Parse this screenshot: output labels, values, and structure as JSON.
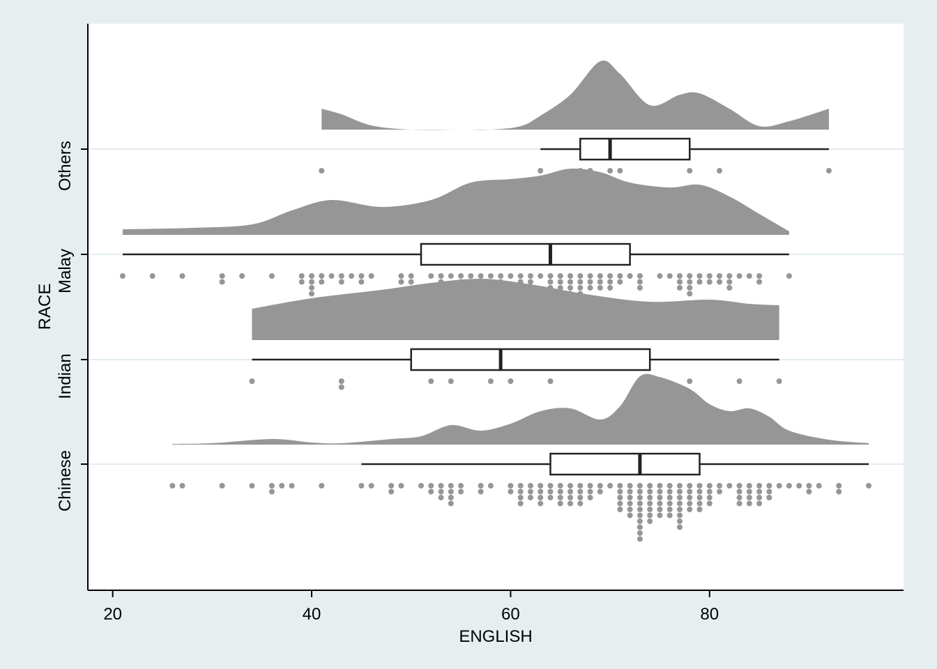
{
  "chart_data": {
    "type": "raincloud",
    "xlabel": "ENGLISH",
    "ylabel": "RACE",
    "xlim": [
      17.5,
      99.5
    ],
    "xticks": [
      20,
      40,
      60,
      80
    ],
    "grid": "horizontal",
    "colors": {
      "background": "#e6eef0",
      "plot": "#ffffff",
      "density": "#969696",
      "dots": "#969696",
      "box": "#222222",
      "grid": "#e3ecee"
    },
    "groups": [
      {
        "name": "Chinese",
        "box": {
          "lower_whisker": 45,
          "q1": 64,
          "median": 73,
          "q3": 79,
          "upper_whisker": 96
        },
        "density": [
          [
            26,
            0.01
          ],
          [
            30,
            0.02
          ],
          [
            36,
            0.08
          ],
          [
            40,
            0.03
          ],
          [
            43,
            0.02
          ],
          [
            48,
            0.08
          ],
          [
            51,
            0.12
          ],
          [
            54,
            0.28
          ],
          [
            57,
            0.2
          ],
          [
            60,
            0.3
          ],
          [
            63,
            0.48
          ],
          [
            66,
            0.52
          ],
          [
            69,
            0.36
          ],
          [
            71,
            0.55
          ],
          [
            73,
            0.98
          ],
          [
            75,
            0.97
          ],
          [
            78,
            0.8
          ],
          [
            80,
            0.58
          ],
          [
            82,
            0.48
          ],
          [
            84,
            0.52
          ],
          [
            86,
            0.4
          ],
          [
            88,
            0.2
          ],
          [
            92,
            0.07
          ],
          [
            96,
            0.02
          ]
        ],
        "dots": [
          [
            26,
            1
          ],
          [
            27,
            1
          ],
          [
            31,
            1
          ],
          [
            34,
            1
          ],
          [
            36,
            2
          ],
          [
            37,
            1
          ],
          [
            38,
            1
          ],
          [
            41,
            1
          ],
          [
            45,
            1
          ],
          [
            46,
            1
          ],
          [
            48,
            2
          ],
          [
            49,
            1
          ],
          [
            51,
            1
          ],
          [
            52,
            2
          ],
          [
            53,
            3
          ],
          [
            54,
            4
          ],
          [
            55,
            2
          ],
          [
            57,
            2
          ],
          [
            58,
            1
          ],
          [
            60,
            2
          ],
          [
            61,
            4
          ],
          [
            62,
            3
          ],
          [
            63,
            4
          ],
          [
            64,
            3
          ],
          [
            65,
            4
          ],
          [
            66,
            4
          ],
          [
            67,
            4
          ],
          [
            68,
            3
          ],
          [
            69,
            2
          ],
          [
            70,
            1
          ],
          [
            71,
            5
          ],
          [
            72,
            6
          ],
          [
            73,
            10
          ],
          [
            74,
            7
          ],
          [
            75,
            6
          ],
          [
            76,
            6
          ],
          [
            77,
            8
          ],
          [
            78,
            5
          ],
          [
            79,
            5
          ],
          [
            80,
            4
          ],
          [
            81,
            2
          ],
          [
            82,
            1
          ],
          [
            83,
            4
          ],
          [
            84,
            4
          ],
          [
            85,
            4
          ],
          [
            86,
            3
          ],
          [
            87,
            1
          ],
          [
            88,
            1
          ],
          [
            89,
            1
          ],
          [
            90,
            2
          ],
          [
            91,
            1
          ],
          [
            93,
            2
          ],
          [
            96,
            1
          ]
        ]
      },
      {
        "name": "Indian",
        "box": {
          "lower_whisker": 34,
          "q1": 50,
          "median": 59,
          "q3": 74,
          "upper_whisker": 87
        },
        "density": [
          [
            34,
            0.45
          ],
          [
            40,
            0.6
          ],
          [
            47,
            0.72
          ],
          [
            52,
            0.82
          ],
          [
            57,
            0.88
          ],
          [
            62,
            0.8
          ],
          [
            68,
            0.65
          ],
          [
            74,
            0.55
          ],
          [
            80,
            0.58
          ],
          [
            84,
            0.52
          ],
          [
            87,
            0.5
          ]
        ],
        "dots": [
          [
            34,
            1
          ],
          [
            43,
            2
          ],
          [
            52,
            1
          ],
          [
            54,
            1
          ],
          [
            58,
            1
          ],
          [
            60,
            1
          ],
          [
            64,
            1
          ],
          [
            78,
            1
          ],
          [
            83,
            1
          ],
          [
            87,
            1
          ]
        ]
      },
      {
        "name": "Malay",
        "box": {
          "lower_whisker": 21,
          "q1": 51,
          "median": 64,
          "q3": 72,
          "upper_whisker": 88
        },
        "density": [
          [
            21,
            0.08
          ],
          [
            28,
            0.1
          ],
          [
            34,
            0.15
          ],
          [
            38,
            0.35
          ],
          [
            42,
            0.5
          ],
          [
            47,
            0.4
          ],
          [
            52,
            0.5
          ],
          [
            56,
            0.75
          ],
          [
            60,
            0.8
          ],
          [
            63,
            0.85
          ],
          [
            66,
            0.95
          ],
          [
            69,
            0.9
          ],
          [
            72,
            0.75
          ],
          [
            76,
            0.68
          ],
          [
            79,
            0.72
          ],
          [
            82,
            0.55
          ],
          [
            85,
            0.3
          ],
          [
            88,
            0.05
          ]
        ],
        "dots": [
          [
            21,
            1
          ],
          [
            24,
            1
          ],
          [
            27,
            1
          ],
          [
            31,
            2
          ],
          [
            33,
            1
          ],
          [
            36,
            1
          ],
          [
            39,
            2
          ],
          [
            40,
            4
          ],
          [
            41,
            2
          ],
          [
            42,
            1
          ],
          [
            43,
            2
          ],
          [
            44,
            1
          ],
          [
            45,
            2
          ],
          [
            46,
            1
          ],
          [
            49,
            2
          ],
          [
            50,
            2
          ],
          [
            52,
            1
          ],
          [
            53,
            2
          ],
          [
            54,
            1
          ],
          [
            55,
            2
          ],
          [
            56,
            4
          ],
          [
            57,
            4
          ],
          [
            58,
            3
          ],
          [
            59,
            2
          ],
          [
            60,
            1
          ],
          [
            61,
            2
          ],
          [
            62,
            2
          ],
          [
            63,
            1
          ],
          [
            64,
            4
          ],
          [
            65,
            4
          ],
          [
            66,
            5
          ],
          [
            67,
            4
          ],
          [
            68,
            3
          ],
          [
            69,
            3
          ],
          [
            70,
            3
          ],
          [
            71,
            2
          ],
          [
            72,
            1
          ],
          [
            73,
            3
          ],
          [
            75,
            1
          ],
          [
            76,
            1
          ],
          [
            77,
            3
          ],
          [
            78,
            4
          ],
          [
            79,
            2
          ],
          [
            80,
            2
          ],
          [
            81,
            2
          ],
          [
            82,
            3
          ],
          [
            83,
            1
          ],
          [
            84,
            1
          ],
          [
            85,
            2
          ],
          [
            88,
            1
          ]
        ]
      },
      {
        "name": "Others",
        "box": {
          "lower_whisker": 63,
          "q1": 67,
          "median": 70,
          "q3": 78,
          "upper_whisker": 92
        },
        "density": [
          [
            41,
            0.3
          ],
          [
            43,
            0.22
          ],
          [
            46,
            0.06
          ],
          [
            50,
            0.0
          ],
          [
            55,
            0.0
          ],
          [
            58,
            0.0
          ],
          [
            61,
            0.05
          ],
          [
            63,
            0.2
          ],
          [
            66,
            0.5
          ],
          [
            69,
            0.98
          ],
          [
            71,
            0.8
          ],
          [
            74,
            0.35
          ],
          [
            77,
            0.5
          ],
          [
            79,
            0.52
          ],
          [
            82,
            0.3
          ],
          [
            85,
            0.05
          ],
          [
            88,
            0.12
          ],
          [
            92,
            0.3
          ]
        ],
        "dots": [
          [
            41,
            1
          ],
          [
            63,
            1
          ],
          [
            67,
            1
          ],
          [
            68,
            1
          ],
          [
            70,
            1
          ],
          [
            71,
            1
          ],
          [
            78,
            1
          ],
          [
            81,
            1
          ],
          [
            92,
            1
          ]
        ]
      }
    ]
  }
}
